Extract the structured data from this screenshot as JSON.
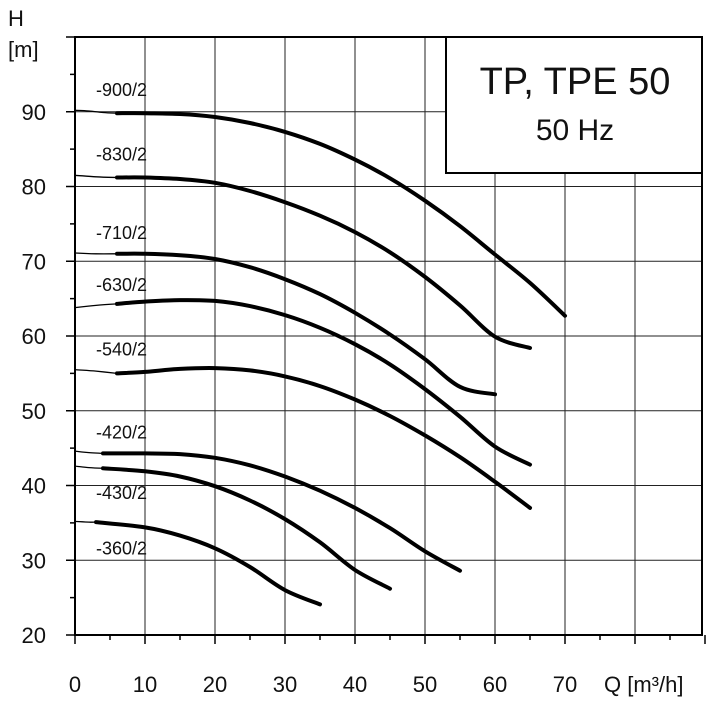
{
  "chart_data": {
    "type": "line",
    "title": "TP, TPE 50",
    "subtitle": "50 Hz",
    "ylabel": [
      "H",
      "[m]"
    ],
    "xlabel": "Q [m³/h]",
    "xlim": [
      0,
      90
    ],
    "ylim": [
      20,
      100
    ],
    "xticks": [
      0,
      10,
      20,
      30,
      40,
      50,
      60,
      70
    ],
    "yticks": [
      20,
      30,
      40,
      50,
      60,
      70,
      80,
      90
    ],
    "grid": true,
    "series": [
      {
        "name": "-900/2",
        "thin": [
          [
            0,
            90.2
          ],
          [
            2,
            90.1
          ],
          [
            4,
            89.9
          ],
          [
            6,
            89.8
          ]
        ],
        "thick": [
          [
            6,
            89.8
          ],
          [
            10,
            89.8
          ],
          [
            15,
            89.7
          ],
          [
            20,
            89.3
          ],
          [
            25,
            88.5
          ],
          [
            30,
            87.3
          ],
          [
            35,
            85.7
          ],
          [
            40,
            83.6
          ],
          [
            45,
            81.1
          ],
          [
            50,
            78.1
          ],
          [
            55,
            74.7
          ],
          [
            60,
            70.9
          ],
          [
            65,
            67.1
          ],
          [
            70,
            62.7
          ],
          [
            77,
            62.7
          ]
        ]
      },
      {
        "name": "-830/2",
        "thin": [
          [
            0,
            81.5
          ],
          [
            3,
            81.3
          ],
          [
            6,
            81.2
          ]
        ],
        "thick": [
          [
            6,
            81.2
          ],
          [
            10,
            81.2
          ],
          [
            15,
            81.0
          ],
          [
            20,
            80.5
          ],
          [
            25,
            79.4
          ],
          [
            30,
            77.9
          ],
          [
            35,
            76.1
          ],
          [
            40,
            73.9
          ],
          [
            45,
            71.2
          ],
          [
            50,
            67.9
          ],
          [
            55,
            64.1
          ],
          [
            60,
            59.9
          ],
          [
            65,
            58.4
          ],
          [
            70,
            58.4
          ]
        ]
      },
      {
        "name": "-710/2",
        "thin": [
          [
            0,
            71.1
          ],
          [
            3,
            71.0
          ],
          [
            6,
            71.0
          ]
        ],
        "thick": [
          [
            6,
            71.0
          ],
          [
            10,
            71.0
          ],
          [
            15,
            70.8
          ],
          [
            20,
            70.3
          ],
          [
            25,
            69.2
          ],
          [
            30,
            67.6
          ],
          [
            35,
            65.6
          ],
          [
            40,
            63.1
          ],
          [
            45,
            60.2
          ],
          [
            50,
            56.9
          ],
          [
            55,
            53.2
          ],
          [
            60,
            52.2
          ],
          [
            64,
            52.2
          ]
        ]
      },
      {
        "name": "-630/2",
        "thin": [
          [
            0,
            63.8
          ],
          [
            3,
            64.1
          ],
          [
            6,
            64.3
          ]
        ],
        "thick": [
          [
            6,
            64.3
          ],
          [
            10,
            64.6
          ],
          [
            15,
            64.8
          ],
          [
            20,
            64.7
          ],
          [
            25,
            64.0
          ],
          [
            30,
            62.8
          ],
          [
            35,
            61.1
          ],
          [
            40,
            58.9
          ],
          [
            45,
            56.2
          ],
          [
            50,
            52.9
          ],
          [
            55,
            49.2
          ],
          [
            60,
            45.2
          ],
          [
            65,
            42.8
          ],
          [
            72,
            42.8
          ]
        ]
      },
      {
        "name": "-540/2",
        "thin": [
          [
            0,
            55.5
          ],
          [
            3,
            55.3
          ],
          [
            6,
            55.0
          ]
        ],
        "thick": [
          [
            6,
            55.0
          ],
          [
            10,
            55.2
          ],
          [
            15,
            55.6
          ],
          [
            20,
            55.7
          ],
          [
            25,
            55.4
          ],
          [
            30,
            54.6
          ],
          [
            35,
            53.3
          ],
          [
            40,
            51.5
          ],
          [
            45,
            49.3
          ],
          [
            50,
            46.7
          ],
          [
            55,
            43.8
          ],
          [
            60,
            40.5
          ],
          [
            65,
            37.0
          ],
          [
            70,
            33.8
          ]
        ]
      },
      {
        "name": "-420/2",
        "thin": [
          [
            0,
            44.6
          ],
          [
            2,
            44.4
          ],
          [
            4,
            44.3
          ]
        ],
        "thick": [
          [
            4,
            44.3
          ],
          [
            10,
            44.3
          ],
          [
            15,
            44.2
          ],
          [
            20,
            43.7
          ],
          [
            25,
            42.7
          ],
          [
            30,
            41.2
          ],
          [
            35,
            39.3
          ],
          [
            40,
            37.0
          ],
          [
            45,
            34.3
          ],
          [
            50,
            31.2
          ],
          [
            55,
            28.6
          ],
          [
            57,
            28.6
          ]
        ]
      },
      {
        "name": "-430/2",
        "thin": [
          [
            0,
            42.6
          ],
          [
            2,
            42.4
          ],
          [
            4,
            42.3
          ]
        ],
        "thick": [
          [
            4,
            42.3
          ],
          [
            10,
            41.9
          ],
          [
            15,
            41.2
          ],
          [
            20,
            39.9
          ],
          [
            25,
            38.0
          ],
          [
            30,
            35.5
          ],
          [
            35,
            32.4
          ],
          [
            40,
            28.7
          ],
          [
            45,
            26.2
          ],
          [
            46,
            26.2
          ]
        ]
      },
      {
        "name": "-360/2",
        "thin": [
          [
            0,
            35.2
          ],
          [
            2,
            35.1
          ],
          [
            3,
            35.1
          ]
        ],
        "thick": [
          [
            3,
            35.1
          ],
          [
            10,
            34.4
          ],
          [
            15,
            33.3
          ],
          [
            20,
            31.6
          ],
          [
            25,
            29.1
          ],
          [
            30,
            26.0
          ],
          [
            35,
            24.1
          ],
          [
            38,
            24.1
          ]
        ]
      }
    ],
    "curve_labels": [
      {
        "text": "-900/2",
        "x": 3.0,
        "y": 92.1
      },
      {
        "text": "-830/2",
        "x": 3.0,
        "y": 83.5
      },
      {
        "text": "-710/2",
        "x": 3.0,
        "y": 73.0
      },
      {
        "text": "-630/2",
        "x": 3.0,
        "y": 66.0
      },
      {
        "text": "-540/2",
        "x": 3.0,
        "y": 57.4
      },
      {
        "text": "-420/2",
        "x": 3.0,
        "y": 46.3
      },
      {
        "text": "-430/2",
        "x": 3.0,
        "y": 38.2
      },
      {
        "text": "-360/2",
        "x": 3.0,
        "y": 30.8
      }
    ]
  }
}
